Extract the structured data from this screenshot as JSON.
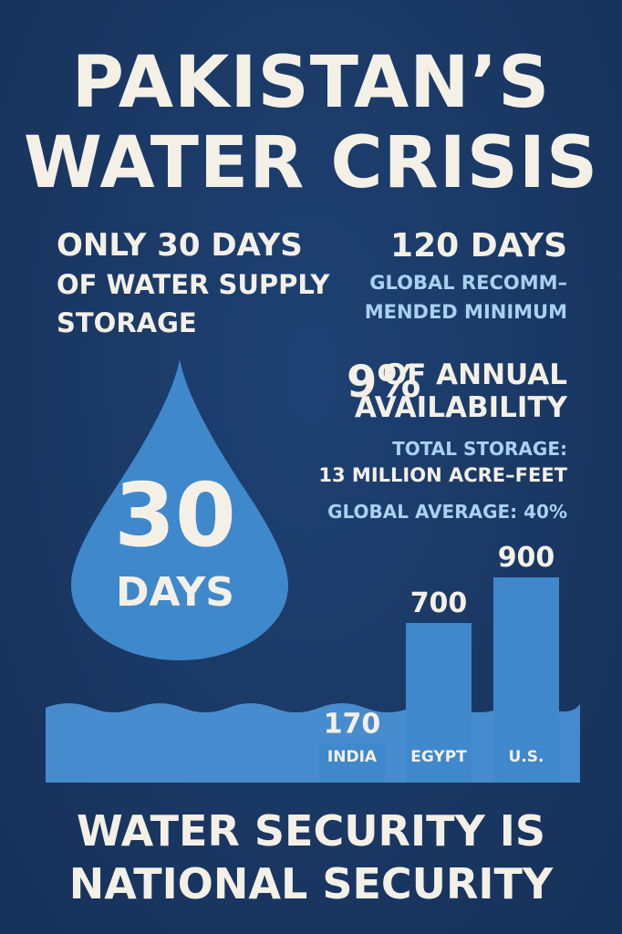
{
  "title": {
    "line1": "PAKISTAN’S",
    "line2": "WATER CRISIS"
  },
  "left_stat": {
    "line1": "ONLY 30 DAYS",
    "line2": "OF WATER SUPPLY",
    "line3": "STORAGE"
  },
  "right_stat": {
    "value": "120 DAYS",
    "caption_line1": "GLOBAL RECOMM–",
    "caption_line2": "MENDED MINIMUM"
  },
  "annual_stat": {
    "percent": "9%",
    "label_line1": "OF ANNUAL",
    "label_line2": "AVAILABILITY",
    "total_line1": "TOTAL STORAGE:",
    "total_line2": "13 MILLION ACRE–FEET",
    "global_average": "GLOBAL AVERAGE: 40%"
  },
  "drop": {
    "number": "30",
    "unit": "DAYS",
    "color": "#3f88cc"
  },
  "chart_data": {
    "type": "bar",
    "categories": [
      "INDIA",
      "EGYPT",
      "U.S."
    ],
    "values": [
      170,
      700,
      900
    ],
    "value_labels": [
      "170",
      "700",
      "900"
    ],
    "bar_color": "#3f88cc",
    "water_color": "#4a90d4"
  },
  "footer": {
    "line1": "WATER SECURITY IS",
    "line2": "NATIONAL SECURITY"
  }
}
